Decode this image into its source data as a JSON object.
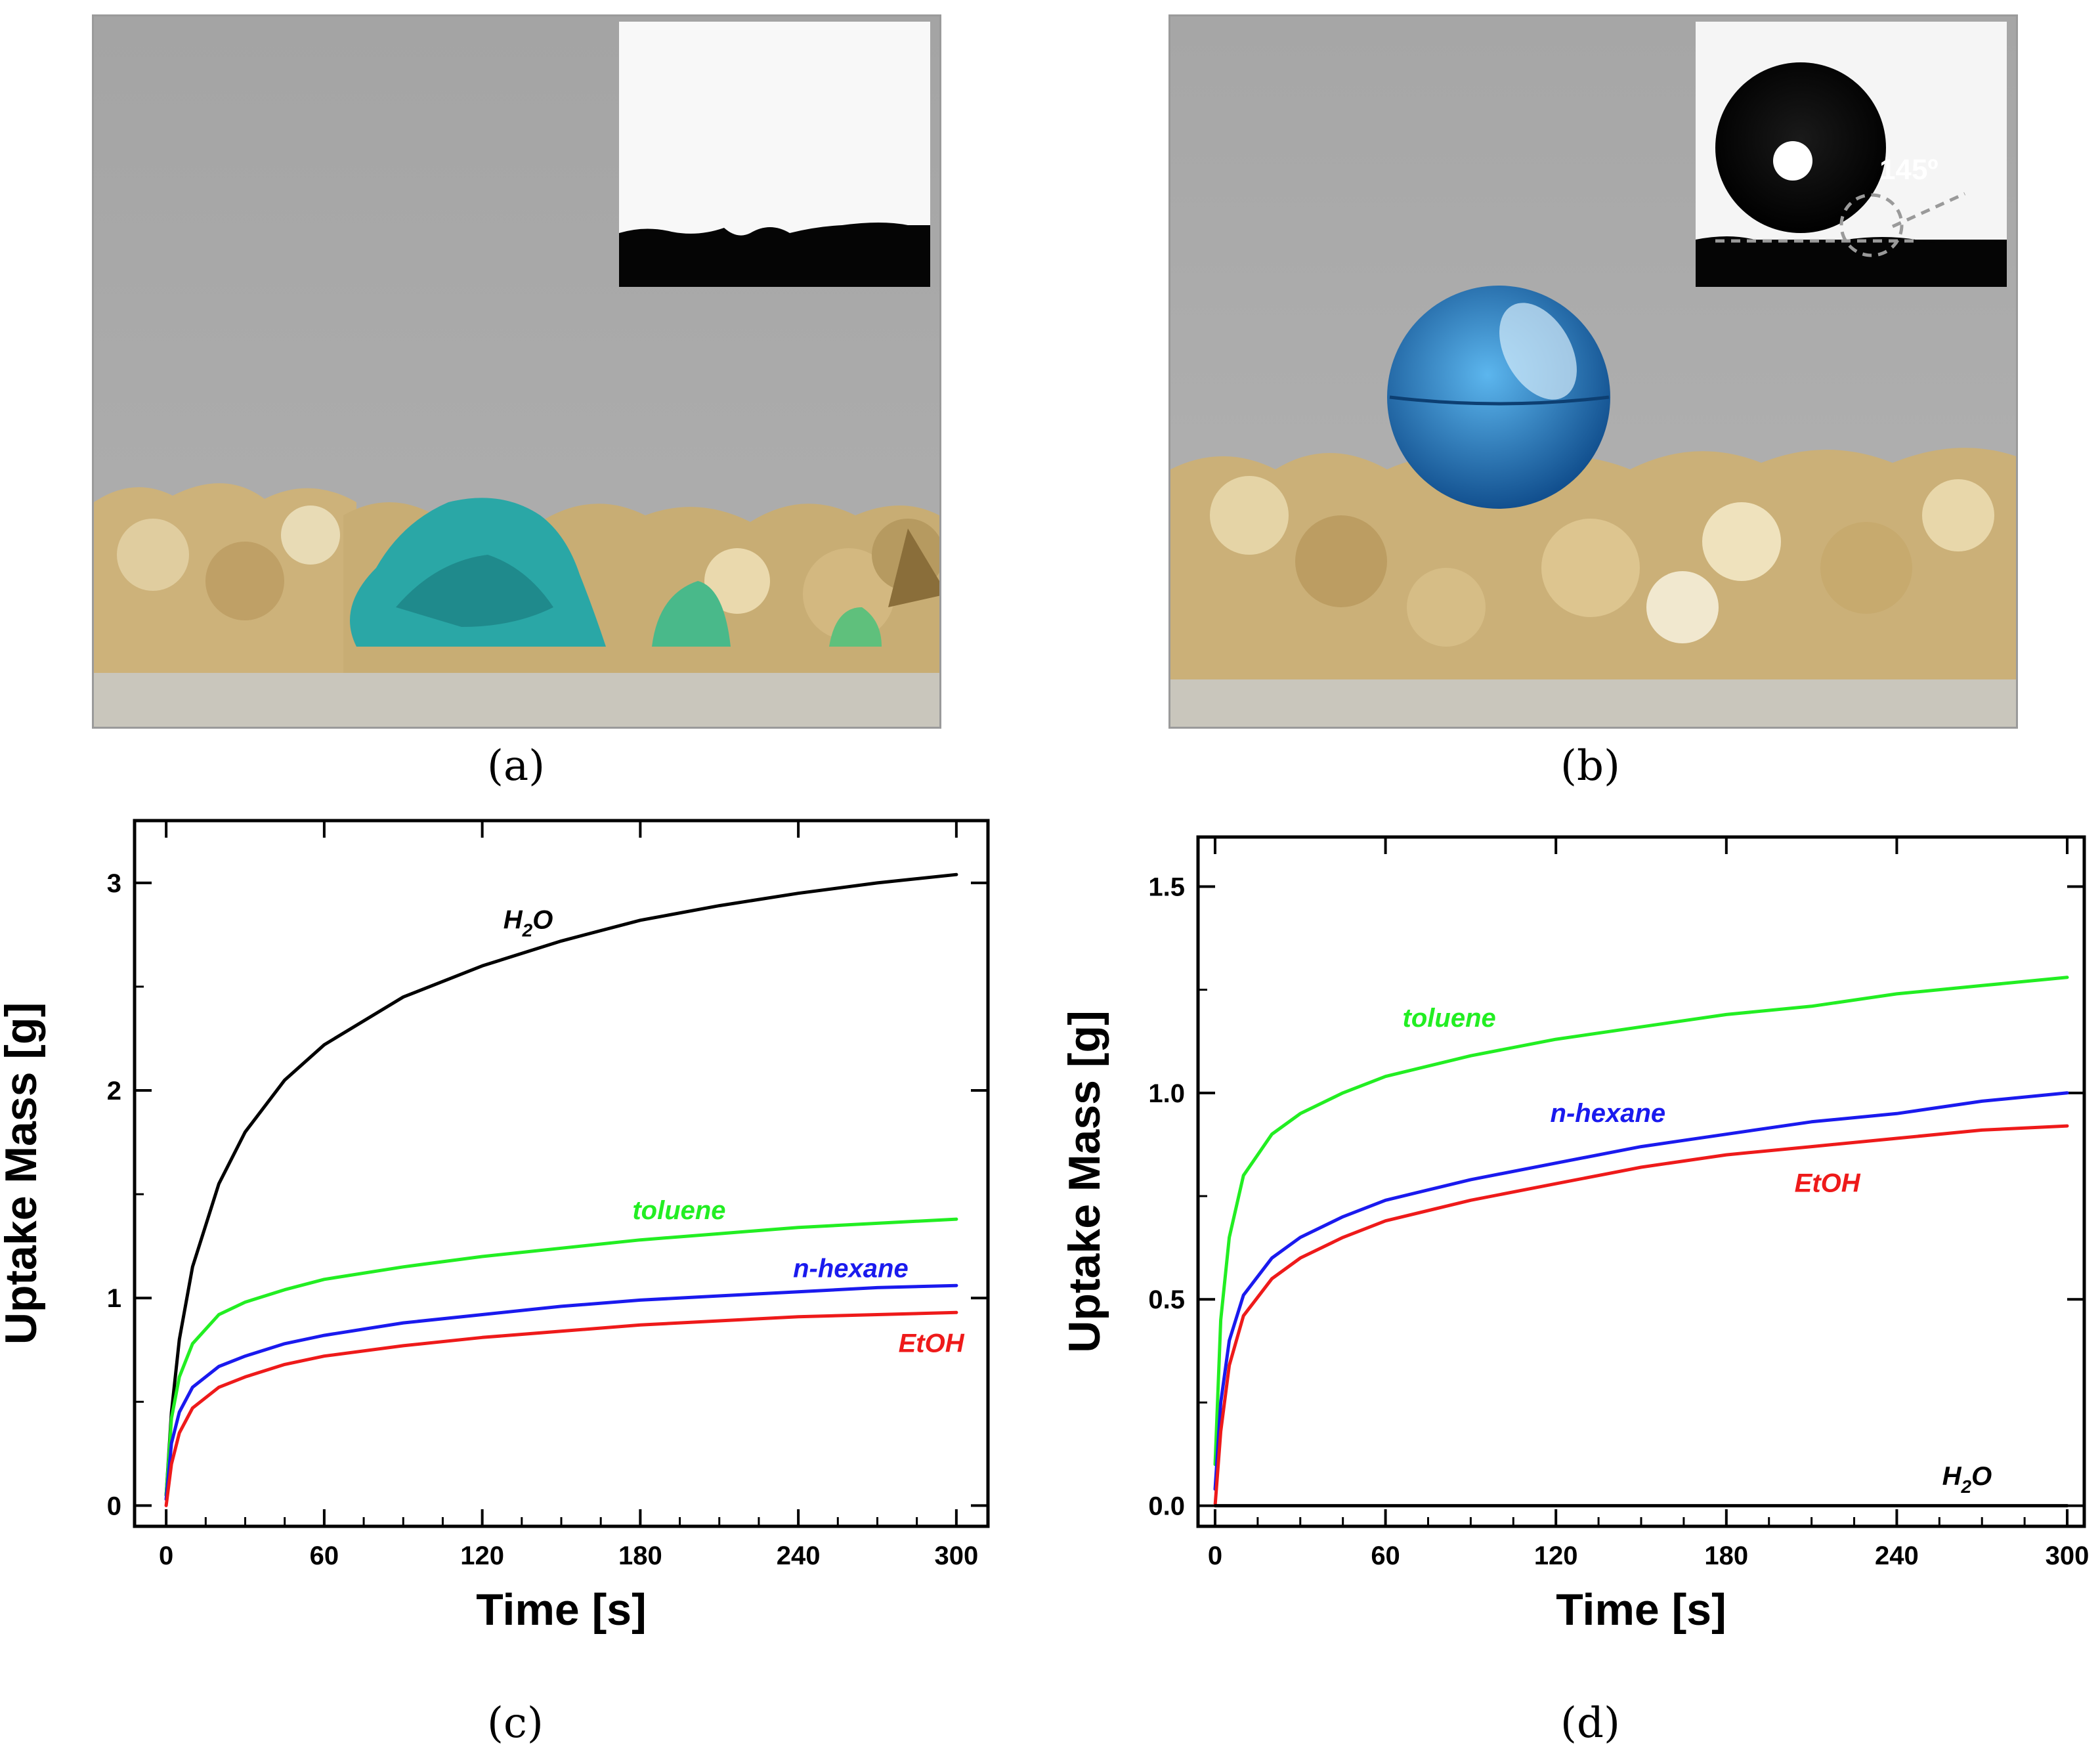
{
  "panels": [
    {
      "caption": "(a)",
      "inset_label": ""
    },
    {
      "caption": "(b)",
      "inset_label": "145º"
    },
    {
      "caption": "(c)"
    },
    {
      "caption": "(d)"
    }
  ],
  "colors": {
    "H2O": "#000000",
    "toluene": "#22ee22",
    "n-hexane": "#1a1aee",
    "EtOH": "#ee1a1a",
    "photo_background": "#a8a8a8",
    "sand": "#cfb784",
    "drop_a": "#2aa8a8",
    "drop_b": "#1f6fb8"
  },
  "chart_data": [
    {
      "type": "line",
      "panel": "(c)",
      "title": "",
      "xlabel": "Time [s]",
      "ylabel": "Uptake Mass [g]",
      "xlim": [
        -12,
        312
      ],
      "ylim": [
        -0.1,
        3.3
      ],
      "xticks": [
        0,
        60,
        120,
        180,
        240,
        300
      ],
      "yticks": [
        0,
        1,
        2,
        3
      ],
      "xtick_labels": [
        "0",
        "60",
        "120",
        "180",
        "240",
        "300"
      ],
      "ytick_labels": [
        "0",
        "1",
        "2",
        "3"
      ],
      "x": [
        0,
        2,
        5,
        10,
        20,
        30,
        45,
        60,
        90,
        120,
        150,
        180,
        210,
        240,
        270,
        300
      ],
      "series": [
        {
          "name": "H2O",
          "label_main": "H",
          "label_sub": "2",
          "label_tail": "O",
          "label_pos": [
            128,
            2.78
          ],
          "values": [
            0.05,
            0.45,
            0.8,
            1.15,
            1.55,
            1.8,
            2.05,
            2.22,
            2.45,
            2.6,
            2.72,
            2.82,
            2.89,
            2.95,
            3.0,
            3.04
          ]
        },
        {
          "name": "toluene",
          "label_main": "toluene",
          "label_sub": "",
          "label_tail": "",
          "label_pos": [
            177,
            1.38
          ],
          "values": [
            0.05,
            0.42,
            0.62,
            0.78,
            0.92,
            0.98,
            1.04,
            1.09,
            1.15,
            1.2,
            1.24,
            1.28,
            1.31,
            1.34,
            1.36,
            1.38
          ]
        },
        {
          "name": "n-hexane",
          "label_main": "n-hexane",
          "label_sub": "",
          "label_tail": "",
          "label_pos": [
            238,
            1.1
          ],
          "values": [
            0.03,
            0.3,
            0.45,
            0.57,
            0.67,
            0.72,
            0.78,
            0.82,
            0.88,
            0.92,
            0.96,
            0.99,
            1.01,
            1.03,
            1.05,
            1.06
          ]
        },
        {
          "name": "EtOH",
          "label_main": "EtOH",
          "label_sub": "",
          "label_tail": "",
          "label_pos": [
            278,
            0.74
          ],
          "values": [
            0.0,
            0.2,
            0.35,
            0.47,
            0.57,
            0.62,
            0.68,
            0.72,
            0.77,
            0.81,
            0.84,
            0.87,
            0.89,
            0.91,
            0.92,
            0.93
          ]
        }
      ]
    },
    {
      "type": "line",
      "panel": "(d)",
      "title": "",
      "xlabel": "Time [s]",
      "ylabel": "Uptake Mass [g]",
      "xlim": [
        -6,
        306
      ],
      "ylim": [
        -0.05,
        1.62
      ],
      "xticks": [
        0,
        60,
        120,
        180,
        240,
        300
      ],
      "yticks": [
        0.0,
        0.5,
        1.0,
        1.5
      ],
      "xtick_labels": [
        "0",
        "60",
        "120",
        "180",
        "240",
        "300"
      ],
      "ytick_labels": [
        "0.0",
        "0.5",
        "1.0",
        "1.5"
      ],
      "x": [
        0,
        2,
        5,
        10,
        20,
        30,
        45,
        60,
        90,
        120,
        150,
        180,
        210,
        240,
        270,
        300
      ],
      "series": [
        {
          "name": "toluene",
          "label_main": "toluene",
          "label_sub": "",
          "label_tail": "",
          "label_pos": [
            66,
            1.16
          ],
          "values": [
            0.1,
            0.45,
            0.65,
            0.8,
            0.9,
            0.95,
            1.0,
            1.04,
            1.09,
            1.13,
            1.16,
            1.19,
            1.21,
            1.24,
            1.26,
            1.28
          ]
        },
        {
          "name": "n-hexane",
          "label_main": "n-hexane",
          "label_sub": "",
          "label_tail": "",
          "label_pos": [
            118,
            0.93
          ],
          "values": [
            0.04,
            0.25,
            0.4,
            0.51,
            0.6,
            0.65,
            0.7,
            0.74,
            0.79,
            0.83,
            0.87,
            0.9,
            0.93,
            0.95,
            0.98,
            1.0
          ]
        },
        {
          "name": "EtOH",
          "label_main": "EtOH",
          "label_sub": "",
          "label_tail": "",
          "label_pos": [
            204,
            0.76
          ],
          "values": [
            0.0,
            0.18,
            0.34,
            0.46,
            0.55,
            0.6,
            0.65,
            0.69,
            0.74,
            0.78,
            0.82,
            0.85,
            0.87,
            0.89,
            0.91,
            0.92
          ]
        },
        {
          "name": "H2O",
          "label_main": "H",
          "label_sub": "2",
          "label_tail": "O",
          "label_pos": [
            256,
            0.05
          ],
          "values": [
            0.0,
            0.0,
            0.0,
            0.0,
            0.0,
            0.0,
            0.0,
            0.0,
            0.0,
            0.0,
            0.0,
            0.0,
            0.0,
            0.0,
            0.0,
            0.0
          ]
        }
      ]
    }
  ]
}
